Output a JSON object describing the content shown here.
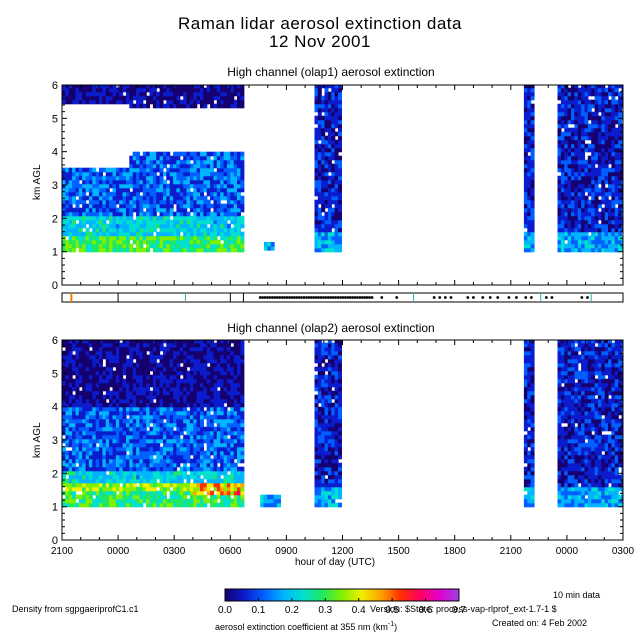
{
  "title": {
    "line1": "Raman lidar aerosol extinction data",
    "line2": "12 Nov 2001"
  },
  "colors": {
    "cbar": [
      "#160070",
      "#0a1ccc",
      "#0060ff",
      "#00b4ff",
      "#00e0d0",
      "#20e860",
      "#80f000",
      "#f0f000",
      "#ffa000",
      "#ff3000",
      "#ff0060",
      "#e000d0",
      "#a040e0"
    ]
  },
  "chart_data": [
    {
      "type": "heatmap",
      "title": "High channel (olap1) aerosol extinction",
      "xlabel": "",
      "ylabel": "km AGL",
      "xlim": [
        -3,
        27
      ],
      "ylim": [
        0,
        6
      ],
      "yticks": [
        "0",
        "1",
        "2",
        "3",
        "4",
        "5",
        "6"
      ],
      "valid_data_blocks_hours": [
        {
          "start": -3.0,
          "end": 6.7,
          "ymin": 1.0,
          "ymax": 6.0
        },
        {
          "start": 7.8,
          "end": 8.3,
          "ymin": 1.05,
          "ymax": 1.2
        },
        {
          "start": 10.5,
          "end": 11.9,
          "ymin": 1.0,
          "ymax": 6.0
        },
        {
          "start": 21.7,
          "end": 22.2,
          "ymin": 1.0,
          "ymax": 6.0
        },
        {
          "start": 23.5,
          "end": 27.0,
          "ymin": 1.0,
          "ymax": 6.0
        }
      ]
    },
    {
      "type": "heatmap",
      "title": "High channel (olap2) aerosol extinction",
      "xlabel": "hour of day (UTC)",
      "ylabel": "km AGL",
      "xlim": [
        -3,
        27
      ],
      "ylim": [
        0,
        6
      ],
      "xticks": [
        "2100",
        "0000",
        "0300",
        "0600",
        "0900",
        "1200",
        "1500",
        "1800",
        "2100",
        "0000",
        "0300"
      ],
      "yticks": [
        "0",
        "1",
        "2",
        "3",
        "4",
        "5",
        "6"
      ],
      "valid_data_blocks_hours": [
        {
          "start": -3.0,
          "end": 6.7,
          "ymin": 1.0,
          "ymax": 6.0
        },
        {
          "start": 7.6,
          "end": 8.6,
          "ymin": 1.0,
          "ymax": 1.3
        },
        {
          "start": 10.5,
          "end": 11.9,
          "ymin": 1.0,
          "ymax": 6.0
        },
        {
          "start": 21.7,
          "end": 22.2,
          "ymin": 1.0,
          "ymax": 6.0
        },
        {
          "start": 23.5,
          "end": 27.0,
          "ymin": 1.0,
          "ymax": 6.0
        }
      ]
    }
  ],
  "colorbar": {
    "ticks": [
      "0.0",
      "0.1",
      "0.2",
      "0.3",
      "0.4",
      "0.5",
      "0.6",
      "0.7"
    ],
    "label": "aerosol extinction coefficient at 355 nm (km",
    "label_sup": "-1",
    "label_end": ")"
  },
  "footer": {
    "density": "Density from sgpgaeriprofC1.c1",
    "ten_min": "10 min data",
    "version": "Version: $State: process-vap-rlprof_ext-1.7-1 $",
    "created": "Created on:  4 Feb 2002"
  }
}
